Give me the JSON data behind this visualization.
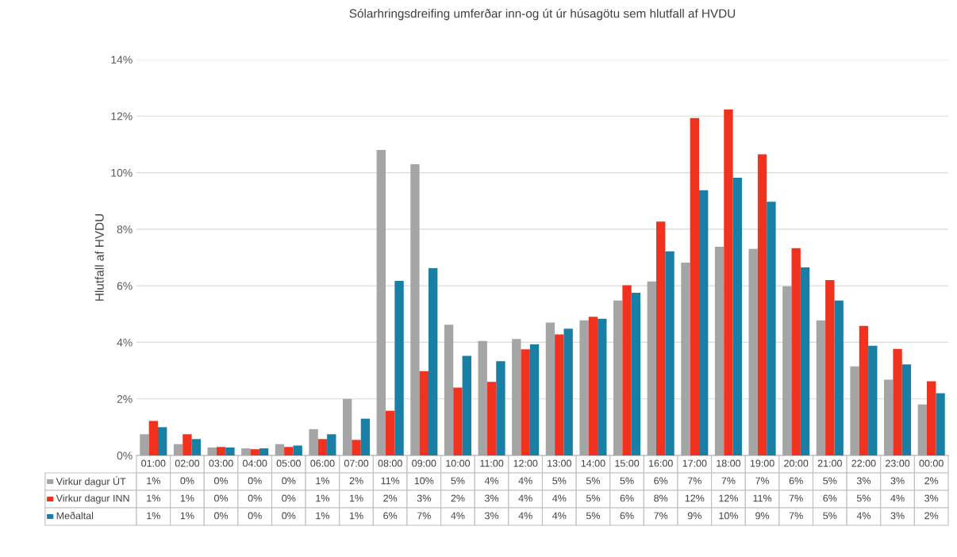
{
  "chart_data": {
    "type": "bar",
    "title": "Sólarhringsdreifing umferðar inn-og út úr húsagötu sem hlutfall af HVDU",
    "ylabel": "Hlutfall af HVDU",
    "categories": [
      "01:00",
      "02:00",
      "03:00",
      "04:00",
      "05:00",
      "06:00",
      "07:00",
      "08:00",
      "09:00",
      "10:00",
      "11:00",
      "12:00",
      "13:00",
      "14:00",
      "15:00",
      "16:00",
      "17:00",
      "18:00",
      "19:00",
      "20:00",
      "21:00",
      "22:00",
      "23:00",
      "00:00"
    ],
    "series": [
      {
        "name": "Virkur dagur ÚT",
        "color": "#a5a5a5",
        "values": [
          0.75,
          0.4,
          0.28,
          0.25,
          0.4,
          0.93,
          2.0,
          10.8,
          10.3,
          4.62,
          4.05,
          4.12,
          4.7,
          4.78,
          5.48,
          6.15,
          6.82,
          7.38,
          7.3,
          5.98,
          4.78,
          3.15,
          2.68,
          1.8
        ],
        "value_labels": [
          "1%",
          "0%",
          "0%",
          "0%",
          "0%",
          "1%",
          "2%",
          "11%",
          "10%",
          "5%",
          "4%",
          "4%",
          "5%",
          "5%",
          "5%",
          "6%",
          "7%",
          "7%",
          "7%",
          "6%",
          "5%",
          "3%",
          "3%",
          "2%"
        ]
      },
      {
        "name": "Virkur dagur INN",
        "color": "#f0321e",
        "values": [
          1.22,
          0.75,
          0.3,
          0.22,
          0.3,
          0.58,
          0.55,
          1.58,
          2.98,
          2.4,
          2.6,
          3.75,
          4.28,
          4.9,
          6.02,
          8.27,
          11.93,
          12.23,
          10.65,
          7.33,
          6.2,
          4.58,
          3.77,
          2.62
        ],
        "value_labels": [
          "1%",
          "1%",
          "0%",
          "0%",
          "0%",
          "1%",
          "1%",
          "2%",
          "3%",
          "2%",
          "3%",
          "4%",
          "4%",
          "5%",
          "6%",
          "8%",
          "12%",
          "12%",
          "11%",
          "7%",
          "6%",
          "5%",
          "4%",
          "3%"
        ]
      },
      {
        "name": "Meðaltal",
        "color": "#1a7fa5",
        "values": [
          1.0,
          0.58,
          0.28,
          0.25,
          0.35,
          0.75,
          1.3,
          6.17,
          6.62,
          3.52,
          3.33,
          3.93,
          4.48,
          4.83,
          5.75,
          7.22,
          9.38,
          9.82,
          8.97,
          6.65,
          5.48,
          3.88,
          3.22,
          2.2
        ],
        "value_labels": [
          "1%",
          "1%",
          "0%",
          "0%",
          "0%",
          "1%",
          "1%",
          "6%",
          "7%",
          "4%",
          "3%",
          "4%",
          "4%",
          "5%",
          "6%",
          "7%",
          "9%",
          "10%",
          "9%",
          "7%",
          "5%",
          "4%",
          "3%",
          "2%"
        ]
      }
    ],
    "ylim": [
      0,
      14
    ],
    "yticks": [
      {
        "value": 0,
        "label": "0%"
      },
      {
        "value": 2,
        "label": "2%"
      },
      {
        "value": 4,
        "label": "4%"
      },
      {
        "value": 6,
        "label": "6%"
      },
      {
        "value": 8,
        "label": "8%"
      },
      {
        "value": 10,
        "label": "10%"
      },
      {
        "value": 12,
        "label": "12%"
      },
      {
        "value": 14,
        "label": "14%"
      }
    ],
    "grid": "y",
    "legend": "bottom"
  }
}
